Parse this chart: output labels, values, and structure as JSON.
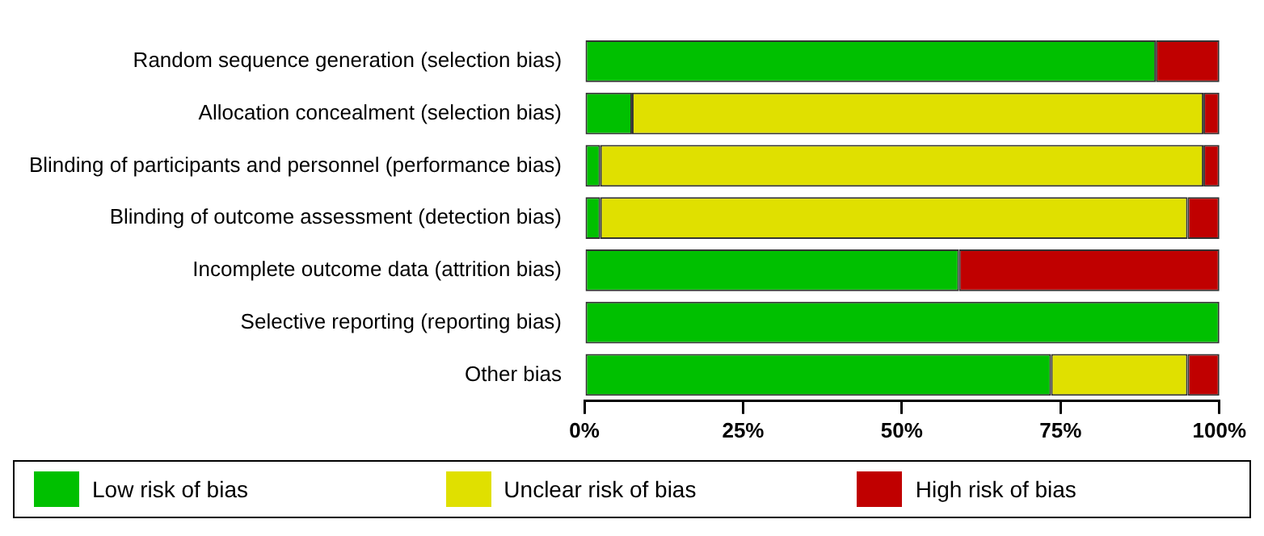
{
  "chart_data": {
    "type": "bar",
    "orientation": "horizontal",
    "stacked": true,
    "categories": [
      "Random sequence generation (selection bias)",
      "Allocation concealment (selection bias)",
      "Blinding of participants and personnel (performance bias)",
      "Blinding of outcome assessment (detection bias)",
      "Incomplete outcome data (attrition bias)",
      "Selective reporting (reporting bias)",
      "Other bias"
    ],
    "series": [
      {
        "name": "Low risk of bias",
        "color": "#00c000",
        "values": [
          90,
          7.5,
          2.5,
          2.5,
          59,
          100,
          73.5
        ]
      },
      {
        "name": "Unclear risk of bias",
        "color": "#e0e000",
        "values": [
          0,
          90,
          95,
          92.5,
          0,
          0,
          21.5
        ]
      },
      {
        "name": "High risk of bias",
        "color": "#c00000",
        "values": [
          10,
          2.5,
          2.5,
          5,
          41,
          0,
          5
        ]
      }
    ],
    "xlim": [
      0,
      100
    ],
    "xticks": [
      {
        "value": 0,
        "label": "0%"
      },
      {
        "value": 25,
        "label": "25%"
      },
      {
        "value": 50,
        "label": "50%"
      },
      {
        "value": 75,
        "label": "75%"
      },
      {
        "value": 100,
        "label": "100%"
      }
    ],
    "grid": false,
    "legend": "bottom"
  }
}
